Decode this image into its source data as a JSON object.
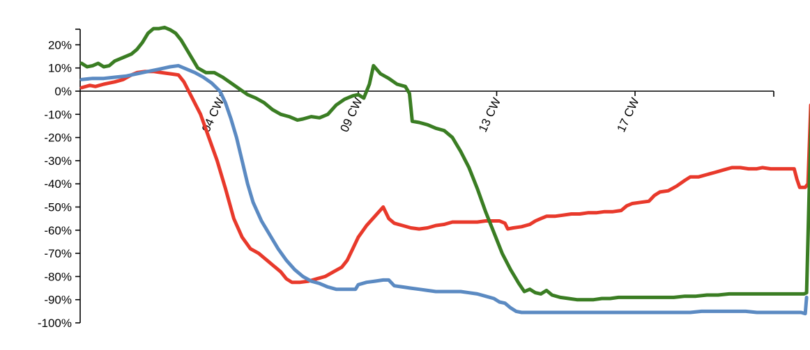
{
  "chart_data": {
    "type": "line",
    "title": "",
    "xlabel": "",
    "ylabel": "",
    "x_unit": "week",
    "x_range": [
      0,
      24.5
    ],
    "ylim": [
      -100,
      28
    ],
    "y_ticks": [
      20,
      10,
      0,
      -10,
      -20,
      -30,
      -40,
      -50,
      -60,
      -70,
      -80,
      -90,
      -100
    ],
    "y_tick_labels": [
      "20%",
      "10%",
      "0%",
      "-10%",
      "-20%",
      "-30%",
      "-40%",
      "-50%",
      "-60%",
      "-70%",
      "-80%",
      "-90%",
      "-100%"
    ],
    "x_ticks": [
      5,
      10,
      15,
      20
    ],
    "x_tick_labels": [
      "04 CW",
      "09 CW",
      "13 CW",
      "17 CW"
    ],
    "grid": false,
    "legend": "none",
    "series": [
      {
        "color": "#e8392b",
        "points": [
          [
            0.0,
            1.5
          ],
          [
            0.3,
            2.5
          ],
          [
            0.5,
            2
          ],
          [
            0.8,
            3
          ],
          [
            1.0,
            3.5
          ],
          [
            1.2,
            4
          ],
          [
            1.5,
            5
          ],
          [
            1.8,
            7
          ],
          [
            2.0,
            8
          ],
          [
            2.3,
            8.5
          ],
          [
            2.6,
            8.5
          ],
          [
            2.9,
            8
          ],
          [
            3.2,
            7.5
          ],
          [
            3.5,
            7
          ],
          [
            3.7,
            4
          ],
          [
            4.0,
            -3
          ],
          [
            4.3,
            -10
          ],
          [
            4.6,
            -20
          ],
          [
            4.9,
            -30
          ],
          [
            5.2,
            -42
          ],
          [
            5.5,
            -55
          ],
          [
            5.8,
            -63
          ],
          [
            6.1,
            -68
          ],
          [
            6.4,
            -70
          ],
          [
            6.7,
            -73
          ],
          [
            7.0,
            -76
          ],
          [
            7.2,
            -78
          ],
          [
            7.4,
            -81
          ],
          [
            7.6,
            -82.5
          ],
          [
            7.9,
            -82.5
          ],
          [
            8.2,
            -82
          ],
          [
            8.5,
            -81
          ],
          [
            8.8,
            -80
          ],
          [
            9.1,
            -78
          ],
          [
            9.4,
            -76
          ],
          [
            9.6,
            -73
          ],
          [
            9.8,
            -68
          ],
          [
            10.0,
            -63
          ],
          [
            10.3,
            -58
          ],
          [
            10.6,
            -54
          ],
          [
            10.9,
            -50
          ],
          [
            11.1,
            -55
          ],
          [
            11.3,
            -57
          ],
          [
            11.6,
            -58
          ],
          [
            11.9,
            -59
          ],
          [
            12.2,
            -59.5
          ],
          [
            12.5,
            -59
          ],
          [
            12.8,
            -58
          ],
          [
            13.1,
            -57.5
          ],
          [
            13.4,
            -56.5
          ],
          [
            13.7,
            -56.5
          ],
          [
            14.0,
            -56.5
          ],
          [
            14.3,
            -56.5
          ],
          [
            14.6,
            -56
          ],
          [
            14.9,
            -56
          ],
          [
            15.1,
            -56
          ],
          [
            15.3,
            -57
          ],
          [
            15.4,
            -59.5
          ],
          [
            15.6,
            -59
          ],
          [
            15.9,
            -58.5
          ],
          [
            16.2,
            -57.5
          ],
          [
            16.4,
            -56
          ],
          [
            16.6,
            -55
          ],
          [
            16.8,
            -54
          ],
          [
            17.1,
            -54
          ],
          [
            17.4,
            -53.5
          ],
          [
            17.7,
            -53
          ],
          [
            18.0,
            -53
          ],
          [
            18.3,
            -52.5
          ],
          [
            18.6,
            -52.5
          ],
          [
            18.9,
            -52
          ],
          [
            19.2,
            -52
          ],
          [
            19.5,
            -51.5
          ],
          [
            19.7,
            -49.5
          ],
          [
            19.9,
            -48.5
          ],
          [
            20.2,
            -48
          ],
          [
            20.5,
            -47.5
          ],
          [
            20.7,
            -45
          ],
          [
            20.9,
            -43.5
          ],
          [
            21.2,
            -43
          ],
          [
            21.5,
            -41
          ],
          [
            21.8,
            -38.5
          ],
          [
            22.0,
            -37
          ],
          [
            22.3,
            -37
          ],
          [
            22.6,
            -36
          ],
          [
            22.9,
            -35
          ],
          [
            23.2,
            -34
          ],
          [
            23.5,
            -33
          ],
          [
            23.8,
            -33
          ],
          [
            24.1,
            -33.5
          ],
          [
            24.4,
            -33.5
          ],
          [
            24.6,
            -33
          ],
          [
            24.9,
            -33.5
          ],
          [
            25.2,
            -33.5
          ],
          [
            25.5,
            -33.5
          ],
          [
            25.75,
            -33.5
          ],
          [
            25.85,
            -38
          ],
          [
            25.95,
            -41.5
          ],
          [
            26.15,
            -41.5
          ],
          [
            26.25,
            -40
          ],
          [
            26.35,
            -6
          ]
        ]
      },
      {
        "color": "#5b8ac2",
        "points": [
          [
            0.0,
            5
          ],
          [
            0.4,
            5.5
          ],
          [
            0.8,
            5.5
          ],
          [
            1.2,
            6
          ],
          [
            1.6,
            6.5
          ],
          [
            2.0,
            7.5
          ],
          [
            2.4,
            8.5
          ],
          [
            2.8,
            9.5
          ],
          [
            3.2,
            10.5
          ],
          [
            3.5,
            11
          ],
          [
            3.8,
            9.5
          ],
          [
            4.1,
            8
          ],
          [
            4.4,
            6
          ],
          [
            4.7,
            3.5
          ],
          [
            5.0,
            0
          ],
          [
            5.2,
            -5
          ],
          [
            5.4,
            -12
          ],
          [
            5.6,
            -20
          ],
          [
            5.8,
            -30
          ],
          [
            6.0,
            -40
          ],
          [
            6.2,
            -48
          ],
          [
            6.5,
            -56
          ],
          [
            6.8,
            -62
          ],
          [
            7.1,
            -68
          ],
          [
            7.4,
            -73
          ],
          [
            7.7,
            -77
          ],
          [
            8.0,
            -80
          ],
          [
            8.3,
            -82
          ],
          [
            8.6,
            -83
          ],
          [
            8.9,
            -84.5
          ],
          [
            9.2,
            -85.5
          ],
          [
            9.6,
            -85.5
          ],
          [
            9.9,
            -85.5
          ],
          [
            10.0,
            -83.5
          ],
          [
            10.3,
            -82.5
          ],
          [
            10.6,
            -82
          ],
          [
            10.9,
            -81.5
          ],
          [
            11.1,
            -81.5
          ],
          [
            11.3,
            -84
          ],
          [
            11.6,
            -84.5
          ],
          [
            11.9,
            -85
          ],
          [
            12.2,
            -85.5
          ],
          [
            12.5,
            -86
          ],
          [
            12.8,
            -86.5
          ],
          [
            13.1,
            -86.5
          ],
          [
            13.4,
            -86.5
          ],
          [
            13.7,
            -86.5
          ],
          [
            14.0,
            -87
          ],
          [
            14.3,
            -87.5
          ],
          [
            14.6,
            -88.5
          ],
          [
            14.9,
            -89.5
          ],
          [
            15.1,
            -91
          ],
          [
            15.3,
            -91.5
          ],
          [
            15.5,
            -93.5
          ],
          [
            15.7,
            -95
          ],
          [
            15.9,
            -95.5
          ],
          [
            16.2,
            -95.5
          ],
          [
            16.5,
            -95.5
          ],
          [
            16.8,
            -95.5
          ],
          [
            17.2,
            -95.5
          ],
          [
            17.6,
            -95.5
          ],
          [
            18.0,
            -95.5
          ],
          [
            18.4,
            -95.5
          ],
          [
            18.8,
            -95.5
          ],
          [
            19.2,
            -95.5
          ],
          [
            19.6,
            -95.5
          ],
          [
            20.0,
            -95.5
          ],
          [
            20.4,
            -95.5
          ],
          [
            20.8,
            -95.5
          ],
          [
            21.2,
            -95.5
          ],
          [
            21.6,
            -95.5
          ],
          [
            22.0,
            -95.5
          ],
          [
            22.4,
            -95
          ],
          [
            22.8,
            -95
          ],
          [
            23.2,
            -95
          ],
          [
            23.6,
            -95
          ],
          [
            24.0,
            -95
          ],
          [
            24.4,
            -95.5
          ],
          [
            24.8,
            -95.5
          ],
          [
            25.2,
            -95.5
          ],
          [
            25.6,
            -95.5
          ],
          [
            26.0,
            -95.5
          ],
          [
            26.15,
            -96
          ],
          [
            26.2,
            -89
          ]
        ]
      },
      {
        "color": "#3a7d23",
        "points": [
          [
            0.0,
            12
          ],
          [
            0.2,
            10.5
          ],
          [
            0.4,
            11
          ],
          [
            0.6,
            12
          ],
          [
            0.8,
            10.5
          ],
          [
            1.0,
            11
          ],
          [
            1.2,
            13
          ],
          [
            1.5,
            14.5
          ],
          [
            1.8,
            16
          ],
          [
            2.0,
            18
          ],
          [
            2.2,
            21
          ],
          [
            2.4,
            25
          ],
          [
            2.6,
            27
          ],
          [
            2.8,
            27
          ],
          [
            3.0,
            27.5
          ],
          [
            3.2,
            26.5
          ],
          [
            3.4,
            25
          ],
          [
            3.6,
            22
          ],
          [
            3.8,
            18
          ],
          [
            4.0,
            14
          ],
          [
            4.2,
            10
          ],
          [
            4.5,
            8
          ],
          [
            4.8,
            8
          ],
          [
            5.1,
            6
          ],
          [
            5.4,
            3.5
          ],
          [
            5.7,
            1
          ],
          [
            6.0,
            -1.5
          ],
          [
            6.3,
            -3
          ],
          [
            6.6,
            -5
          ],
          [
            6.9,
            -8
          ],
          [
            7.2,
            -10
          ],
          [
            7.5,
            -11
          ],
          [
            7.8,
            -12.5
          ],
          [
            8.0,
            -12
          ],
          [
            8.3,
            -11
          ],
          [
            8.6,
            -11.5
          ],
          [
            8.9,
            -10
          ],
          [
            9.2,
            -6
          ],
          [
            9.5,
            -3.5
          ],
          [
            9.8,
            -2
          ],
          [
            10.0,
            -1.5
          ],
          [
            10.2,
            -3
          ],
          [
            10.4,
            3
          ],
          [
            10.55,
            11
          ],
          [
            10.8,
            7.5
          ],
          [
            11.1,
            5.5
          ],
          [
            11.4,
            3
          ],
          [
            11.7,
            2
          ],
          [
            11.85,
            -1
          ],
          [
            11.95,
            -13
          ],
          [
            12.2,
            -13.5
          ],
          [
            12.5,
            -14.5
          ],
          [
            12.8,
            -16
          ],
          [
            13.1,
            -17
          ],
          [
            13.4,
            -20
          ],
          [
            13.7,
            -26
          ],
          [
            14.0,
            -33
          ],
          [
            14.3,
            -42
          ],
          [
            14.6,
            -52
          ],
          [
            14.9,
            -61
          ],
          [
            15.2,
            -70
          ],
          [
            15.5,
            -77
          ],
          [
            15.8,
            -83
          ],
          [
            16.0,
            -86.5
          ],
          [
            16.2,
            -85.5
          ],
          [
            16.4,
            -87
          ],
          [
            16.6,
            -87.5
          ],
          [
            16.8,
            -86
          ],
          [
            17.0,
            -88
          ],
          [
            17.3,
            -89
          ],
          [
            17.6,
            -89.5
          ],
          [
            17.9,
            -90
          ],
          [
            18.2,
            -90
          ],
          [
            18.5,
            -90
          ],
          [
            18.8,
            -89.5
          ],
          [
            19.1,
            -89.5
          ],
          [
            19.4,
            -89
          ],
          [
            19.8,
            -89
          ],
          [
            20.2,
            -89
          ],
          [
            20.6,
            -89
          ],
          [
            21.0,
            -89
          ],
          [
            21.4,
            -89
          ],
          [
            21.8,
            -88.5
          ],
          [
            22.2,
            -88.5
          ],
          [
            22.6,
            -88
          ],
          [
            23.0,
            -88
          ],
          [
            23.4,
            -87.5
          ],
          [
            23.8,
            -87.5
          ],
          [
            24.2,
            -87.5
          ],
          [
            24.6,
            -87.5
          ],
          [
            25.0,
            -87.5
          ],
          [
            25.4,
            -87.5
          ],
          [
            25.8,
            -87.5
          ],
          [
            26.1,
            -87.5
          ],
          [
            26.2,
            -87
          ],
          [
            26.3,
            -40
          ],
          [
            26.4,
            0
          ],
          [
            26.5,
            0.5
          ],
          [
            26.7,
            0.5
          ],
          [
            26.9,
            0.5
          ]
        ]
      }
    ]
  }
}
